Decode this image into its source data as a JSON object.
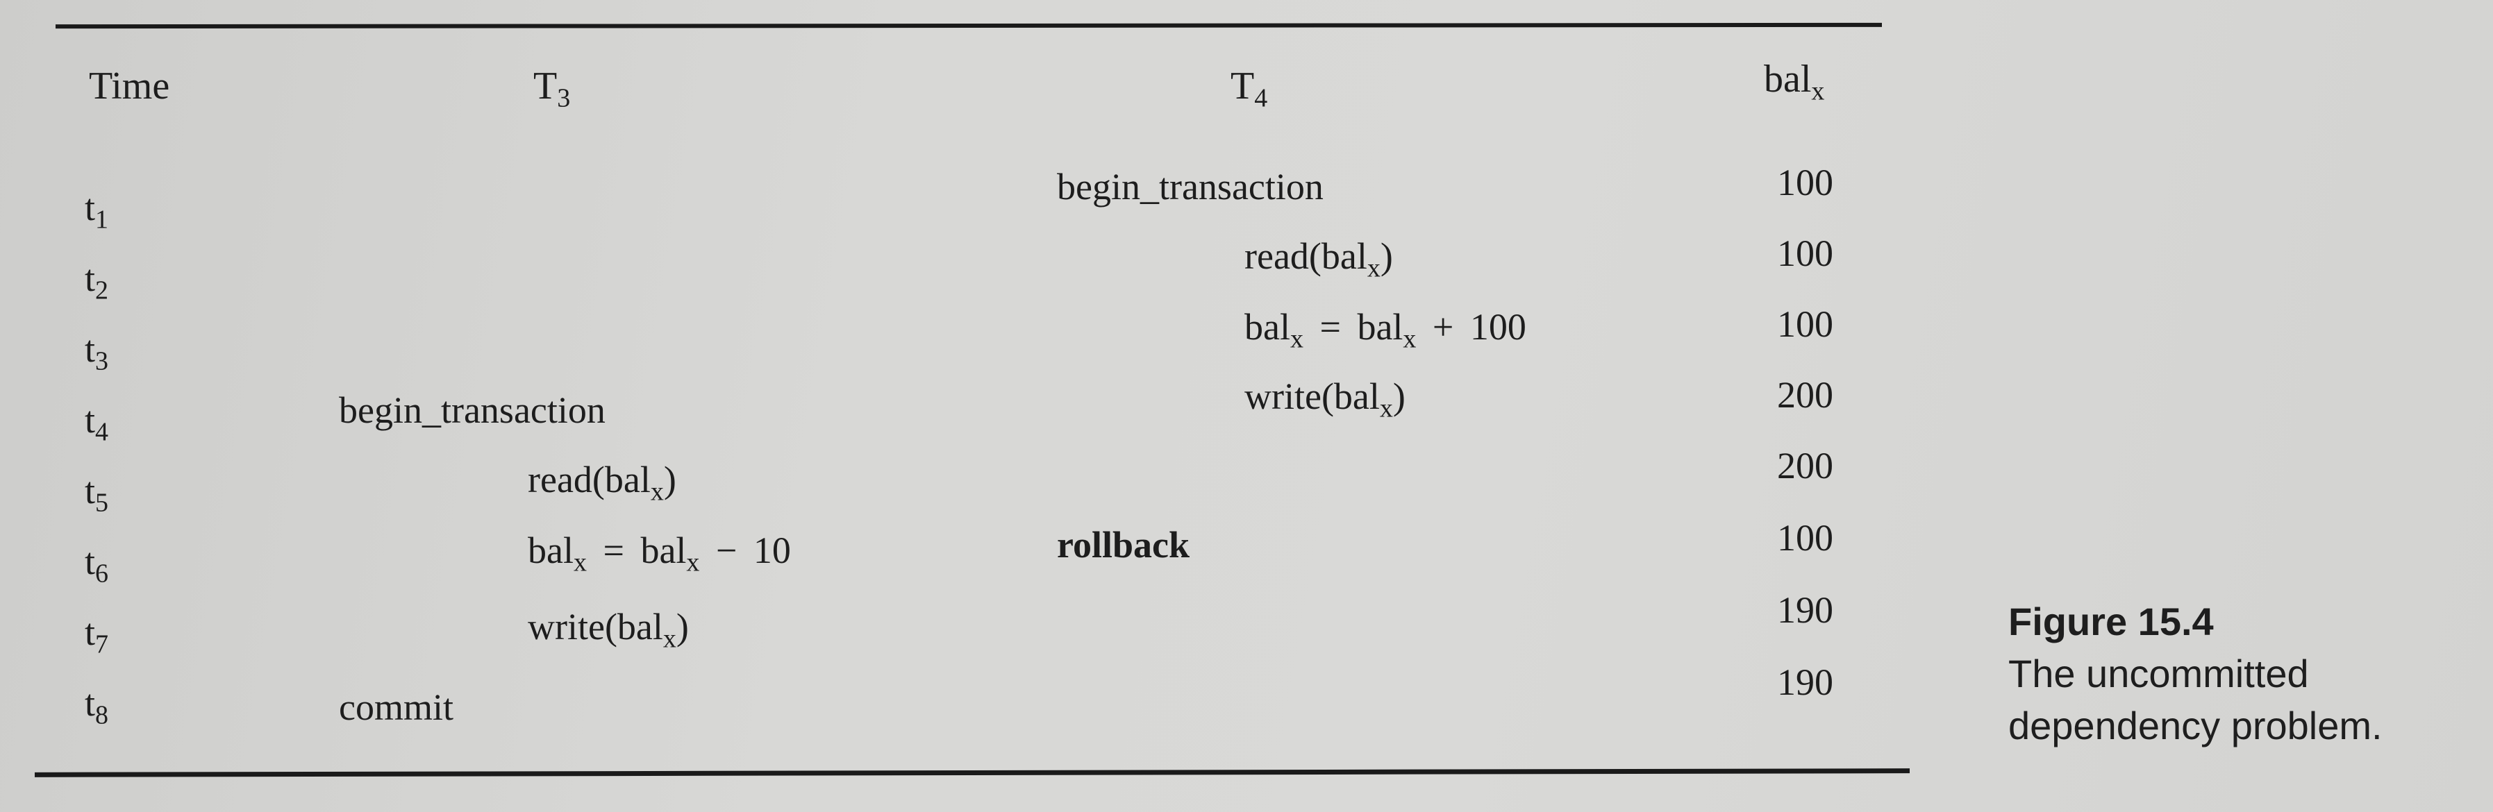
{
  "table": {
    "headers": {
      "time": "Time",
      "t3_base": "T",
      "t3_sub": "3",
      "t4_base": "T",
      "t4_sub": "4",
      "bal_base": "bal",
      "bal_sub": "x"
    },
    "rows": [
      {
        "time_base": "t",
        "time_sub": "1",
        "t3": "",
        "t4": "begin_transaction",
        "bal": "100"
      },
      {
        "time_base": "t",
        "time_sub": "2",
        "t3": "",
        "t4_pre": "read(bal",
        "t4_sub": "x",
        "t4_post": ")",
        "bal": "100"
      },
      {
        "time_base": "t",
        "time_sub": "3",
        "t3": "",
        "t4_a": "bal",
        "t4_a_sub": "x",
        "t4_mid": " = bal",
        "t4_b_sub": "x",
        "t4_post": " + 100",
        "bal": "100"
      },
      {
        "time_base": "t",
        "time_sub": "4",
        "t3": "begin_transaction",
        "t4_pre": "write(bal",
        "t4_sub": "x",
        "t4_post": ")",
        "bal": "200"
      },
      {
        "time_base": "t",
        "time_sub": "5",
        "t3_pre": "read(bal",
        "t3_sub": "x",
        "t3_post": ")",
        "t4": "",
        "bal": "200"
      },
      {
        "time_base": "t",
        "time_sub": "6",
        "t3_a": "bal",
        "t3_a_sub": "x",
        "t3_mid": " = bal",
        "t3_b_sub": "x",
        "t3_post": " − 10",
        "t4": "rollback",
        "bal": "100"
      },
      {
        "time_base": "t",
        "time_sub": "7",
        "t3_pre": "write(bal",
        "t3_sub": "x",
        "t3_post": ")",
        "t4": "",
        "bal": "190"
      },
      {
        "time_base": "t",
        "time_sub": "8",
        "t3": "commit",
        "t4": "",
        "bal": "190"
      }
    ]
  },
  "caption": {
    "title": "Figure 15.4",
    "line1": "The uncommitted",
    "line2": "dependency problem."
  }
}
